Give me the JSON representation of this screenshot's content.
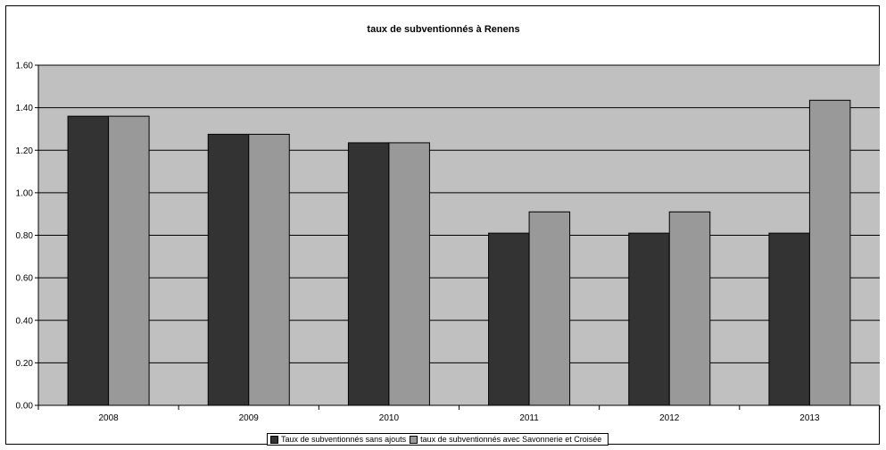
{
  "chart_data": {
    "type": "bar",
    "title": "taux de subventionnés à Renens",
    "xlabel": "",
    "ylabel": "",
    "categories": [
      "2008",
      "2009",
      "2010",
      "2011",
      "2012",
      "2013"
    ],
    "series": [
      {
        "name": "Taux de subventionnés sans ajouts",
        "values": [
          1.36,
          1.275,
          1.235,
          0.81,
          0.81,
          0.81
        ],
        "color": "#333333"
      },
      {
        "name": "taux de subventionnés avec Savonnerie et Croisée",
        "values": [
          1.36,
          1.275,
          1.235,
          0.91,
          0.91,
          1.435
        ],
        "color": "#999999"
      }
    ],
    "ylim": [
      0,
      1.6
    ],
    "yticks": [
      "0.00",
      "0.20",
      "0.40",
      "0.60",
      "0.80",
      "1.00",
      "1.20",
      "1.40",
      "1.60"
    ],
    "grid": true,
    "legend_position": "bottom",
    "plot_background": "#c0c0c0"
  }
}
